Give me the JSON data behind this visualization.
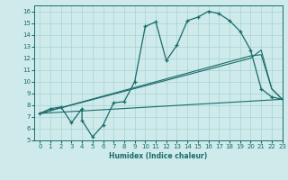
{
  "xlabel": "Humidex (Indice chaleur)",
  "bg_color": "#ceeaea",
  "line_color": "#1a6b6b",
  "grid_color": "#a8d4d4",
  "xlim": [
    -0.5,
    23
  ],
  "ylim": [
    5,
    16.5
  ],
  "xticks": [
    0,
    1,
    2,
    3,
    4,
    5,
    6,
    7,
    8,
    9,
    10,
    11,
    12,
    13,
    14,
    15,
    16,
    17,
    18,
    19,
    20,
    21,
    22,
    23
  ],
  "yticks": [
    5,
    6,
    7,
    8,
    9,
    10,
    11,
    12,
    13,
    14,
    15,
    16
  ],
  "line1_x": [
    0,
    1,
    2,
    3,
    4,
    4,
    5,
    6,
    7,
    8,
    9,
    10,
    11,
    12,
    13,
    14,
    15,
    16,
    17,
    18,
    19,
    20,
    21,
    22,
    23
  ],
  "line1_y": [
    7.3,
    7.7,
    7.85,
    6.5,
    7.7,
    6.7,
    5.3,
    6.3,
    8.2,
    8.3,
    10.0,
    14.7,
    15.1,
    11.8,
    13.1,
    15.2,
    15.5,
    16.0,
    15.8,
    15.2,
    14.3,
    12.7,
    9.4,
    8.7,
    8.5
  ],
  "line2_x": [
    0,
    23
  ],
  "line2_y": [
    7.3,
    8.5
  ],
  "line3_x": [
    0,
    20,
    21,
    22,
    23
  ],
  "line3_y": [
    7.3,
    12.0,
    12.7,
    9.4,
    8.5
  ],
  "line4_x": [
    0,
    20,
    21,
    22,
    23
  ],
  "line4_y": [
    7.3,
    12.2,
    12.3,
    9.4,
    8.5
  ]
}
